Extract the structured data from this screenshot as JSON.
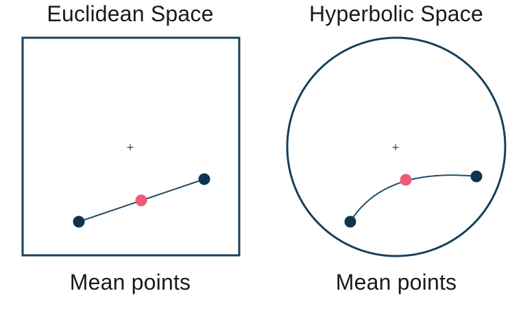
{
  "colors": {
    "frame": "#163f5a",
    "endpoint": "#0d3551",
    "mean_point": "#ee5a78",
    "curve": "#1f4a66"
  },
  "euclidean": {
    "title": "Euclidean Space",
    "caption": "Mean points",
    "center_marker": "+"
  },
  "hyperbolic": {
    "title": "Hyperbolic Space",
    "caption": "Mean points",
    "center_marker": "+"
  }
}
